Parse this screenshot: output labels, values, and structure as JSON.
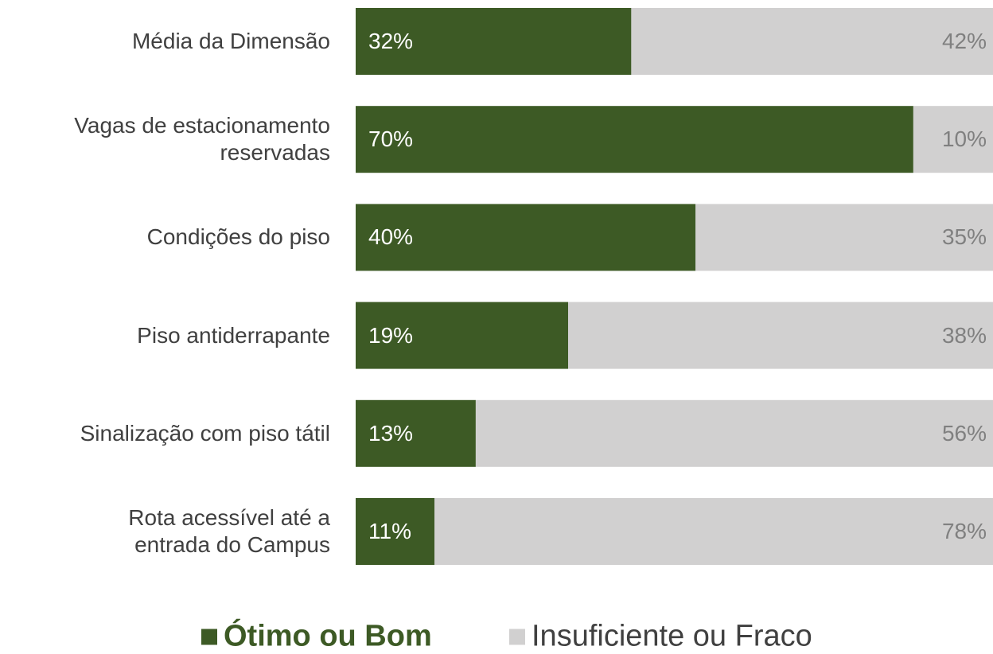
{
  "chart_data": {
    "type": "bar",
    "orientation": "horizontal",
    "stacking": "percent",
    "categories": [
      "Média da Dimensão",
      "Vagas de estacionamento\nreservadas",
      "Condições do piso",
      "Piso antiderrapante",
      "Sinalização com piso tátil",
      "Rota acessível até a\nentrada do Campus"
    ],
    "series": [
      {
        "name": "Ótimo ou Bom",
        "color": "#3d5a25",
        "values": [
          32,
          70,
          40,
          19,
          13,
          11
        ],
        "value_labels": [
          "32%",
          "70%",
          "40%",
          "19%",
          "13%",
          "11%"
        ]
      },
      {
        "name": "Insuficiente ou Fraco",
        "color": "#d1d0d0",
        "values": [
          42,
          10,
          35,
          38,
          56,
          78
        ],
        "value_labels": [
          "42%",
          "10%",
          "35%",
          "38%",
          "56%",
          "78%"
        ]
      }
    ],
    "legend": "bottom"
  }
}
